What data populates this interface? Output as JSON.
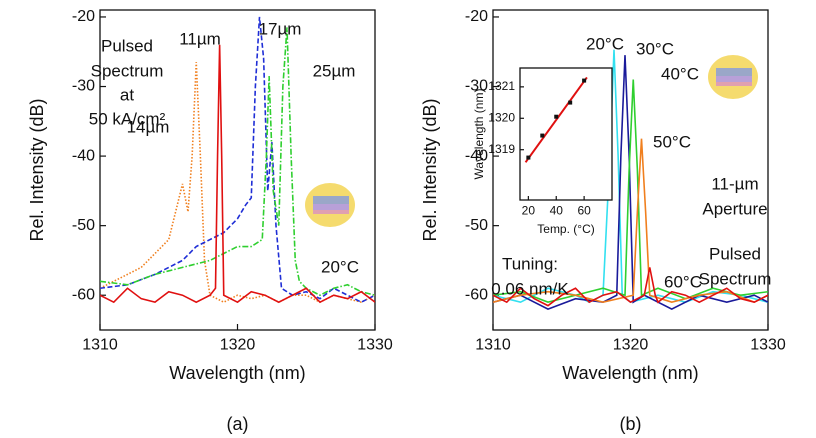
{
  "chart_data": [
    {
      "type": "line",
      "xlabel": "Wavelength (nm)",
      "ylabel": "Rel. Intensity (dB)",
      "caption": "(a)",
      "xlim": [
        1310,
        1330
      ],
      "ylim": [
        -65,
        -19
      ],
      "xticks": [
        1310,
        1320,
        1330
      ],
      "yticks": [
        -20,
        -30,
        -40,
        -50,
        -60
      ],
      "annotations": [
        "Pulsed",
        "Spectrum",
        "at",
        "50 kA/cm²",
        "20°C"
      ],
      "series": [
        {
          "name": "14µm",
          "color": "#f07f1e",
          "linestyle": "dotted",
          "x": [
            1310,
            1311,
            1312,
            1313,
            1314,
            1315,
            1315.5,
            1316,
            1316.4,
            1316.7,
            1317,
            1317.3,
            1317.6,
            1318,
            1319,
            1320,
            1321,
            1322,
            1323,
            1324,
            1325,
            1326,
            1327,
            1328,
            1329,
            1330
          ],
          "values": [
            -59,
            -58,
            -57,
            -56,
            -54,
            -52,
            -48,
            -44,
            -48,
            -40,
            -26.5,
            -40,
            -55,
            -60,
            -61,
            -60,
            -60.5,
            -60,
            -61,
            -60,
            -60,
            -61,
            -60,
            -60.5,
            -61,
            -60
          ]
        },
        {
          "name": "17µm",
          "color": "#1f2ed6",
          "linestyle": "dashed",
          "x": [
            1310,
            1312,
            1314,
            1316,
            1317,
            1318,
            1319,
            1320,
            1320.6,
            1321,
            1321.3,
            1321.6,
            1321.9,
            1322.2,
            1322.5,
            1322.8,
            1323.2,
            1324,
            1325,
            1326,
            1327,
            1328,
            1329,
            1330
          ],
          "values": [
            -59,
            -58.5,
            -57,
            -55,
            -53,
            -52,
            -51,
            -49,
            -47,
            -46,
            -30,
            -20,
            -26,
            -45,
            -38,
            -50,
            -59,
            -60,
            -59.5,
            -60.5,
            -59,
            -60,
            -61,
            -60
          ]
        },
        {
          "name": "25µm",
          "color": "#2fcf2f",
          "linestyle": "dashdot",
          "x": [
            1310,
            1312,
            1314,
            1316,
            1318,
            1319,
            1320,
            1321,
            1321.8,
            1322.1,
            1322.3,
            1322.6,
            1323,
            1323.3,
            1323.6,
            1323.9,
            1324.2,
            1324.5,
            1325,
            1326,
            1327,
            1328,
            1329,
            1330
          ],
          "values": [
            -58,
            -58.5,
            -57,
            -56,
            -55,
            -54,
            -53,
            -53,
            -52,
            -40,
            -28.5,
            -45,
            -50,
            -30,
            -21.5,
            -40,
            -55,
            -58,
            -59,
            -60,
            -59,
            -58.5,
            -59.5,
            -60
          ]
        },
        {
          "name": "11µm",
          "color": "#e01010",
          "linestyle": "solid",
          "x": [
            1310,
            1311,
            1312,
            1313,
            1314,
            1315,
            1316,
            1317,
            1318,
            1318.4,
            1318.55,
            1318.7,
            1318.85,
            1319,
            1320,
            1321,
            1322,
            1323,
            1324,
            1325,
            1326,
            1327,
            1328,
            1329,
            1330
          ],
          "values": [
            -60,
            -61,
            -59,
            -60.5,
            -61,
            -59.5,
            -60,
            -61,
            -60,
            -59,
            -40,
            -24,
            -40,
            -60,
            -61,
            -59.5,
            -60,
            -61,
            -60,
            -59,
            -61,
            -60,
            -60.5,
            -59.5,
            -61
          ]
        }
      ]
    },
    {
      "type": "line",
      "xlabel": "Wavelength (nm)",
      "ylabel": "Rel. Intensity (dB)",
      "caption": "(b)",
      "xlim": [
        1310,
        1330
      ],
      "ylim": [
        -65,
        -19
      ],
      "xticks": [
        1310,
        1320,
        1330
      ],
      "yticks": [
        -20,
        -30,
        -40,
        -50,
        -60
      ],
      "annotations": [
        "11-µm",
        "Aperture",
        "Pulsed",
        "Spectrum",
        "Tuning:",
        "0.06 nm/K"
      ],
      "series": [
        {
          "name": "20°C",
          "color": "#33e0f0",
          "linestyle": "solid",
          "x": [
            1310,
            1312,
            1314,
            1316,
            1317,
            1318,
            1318.5,
            1318.8,
            1319.1,
            1319.4,
            1320,
            1322,
            1324,
            1326,
            1328,
            1330
          ],
          "values": [
            -60,
            -61,
            -59,
            -60,
            -61,
            -60,
            -40,
            -24.7,
            -40,
            -60,
            -61,
            -60,
            -61,
            -59.5,
            -60,
            -61
          ]
        },
        {
          "name": "30°C",
          "color": "#1a1a9a",
          "linestyle": "solid",
          "x": [
            1310,
            1312,
            1314,
            1316,
            1318,
            1319,
            1319.3,
            1319.6,
            1319.9,
            1320.2,
            1321,
            1323,
            1325,
            1327,
            1329,
            1330
          ],
          "values": [
            -61,
            -60,
            -62,
            -60.5,
            -61,
            -60,
            -40,
            -25.5,
            -40,
            -61,
            -60,
            -62,
            -60,
            -61,
            -60,
            -61
          ]
        },
        {
          "name": "40°C",
          "color": "#2fcf2f",
          "linestyle": "solid",
          "x": [
            1310,
            1312,
            1314,
            1316,
            1318,
            1319.6,
            1319.9,
            1320.2,
            1320.5,
            1320.8,
            1322,
            1324,
            1326,
            1328,
            1330
          ],
          "values": [
            -60,
            -59.5,
            -61,
            -60,
            -59,
            -60,
            -42,
            -29,
            -42,
            -60,
            -59,
            -60.5,
            -59,
            -60,
            -59.5
          ]
        },
        {
          "name": "50°C",
          "color": "#f07f1e",
          "linestyle": "solid",
          "x": [
            1310,
            1312,
            1314,
            1316,
            1318,
            1320.2,
            1320.5,
            1320.8,
            1321.1,
            1321.4,
            1323,
            1325,
            1327,
            1329,
            1330
          ],
          "values": [
            -61,
            -60,
            -59.5,
            -60,
            -61,
            -60,
            -48,
            -37.5,
            -48,
            -60,
            -61,
            -60,
            -59.5,
            -61,
            -60
          ]
        },
        {
          "name": "60°C",
          "color": "#e01010",
          "linestyle": "solid",
          "x": [
            1310,
            1311,
            1312,
            1313,
            1314,
            1315,
            1316,
            1317,
            1318,
            1319,
            1320,
            1321,
            1321.4,
            1321.8,
            1322,
            1323,
            1324,
            1325,
            1326,
            1327,
            1328,
            1329,
            1330
          ],
          "values": [
            -60,
            -61,
            -59,
            -60.5,
            -61.5,
            -60,
            -59,
            -61,
            -60,
            -59.5,
            -61,
            -60,
            -56,
            -60,
            -61,
            -59.5,
            -60,
            -61,
            -60,
            -59,
            -60.5,
            -61,
            -60
          ]
        }
      ],
      "inset": {
        "type": "scatter",
        "xlabel": "Temp. (°C)",
        "ylabel": "Wavelength (nm)",
        "xlim": [
          14,
          80
        ],
        "ylim": [
          1317.4,
          1321.6
        ],
        "xticks": [
          20,
          40,
          60
        ],
        "yticks": [
          1319,
          1320,
          1321
        ],
        "x": [
          20,
          30,
          40,
          50,
          60
        ],
        "values": [
          1318.75,
          1319.45,
          1320.05,
          1320.5,
          1321.2
        ],
        "color": "#111111",
        "fit": {
          "x": [
            18,
            62
          ],
          "values": [
            1318.6,
            1321.3
          ],
          "color": "#e01010"
        }
      }
    }
  ]
}
